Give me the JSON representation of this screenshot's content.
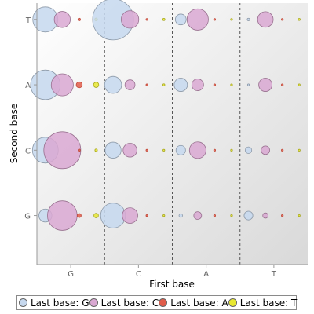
{
  "chart_data": {
    "type": "scatter",
    "title": "",
    "xlabel": "First base",
    "ylabel": "Second base",
    "x_categories": [
      "G",
      "C",
      "A",
      "T"
    ],
    "y_categories": [
      "T",
      "A",
      "C",
      "G"
    ],
    "sub_columns": 4,
    "sub_rows": 2,
    "grid": "dashed vertical separators",
    "legend_position": "bottom",
    "series": [
      {
        "name": "Last base: G",
        "color": "#c6d8ee"
      },
      {
        "name": "Last base: C",
        "color": "#d9a8d2"
      },
      {
        "name": "Last base: A",
        "color": "#e05c4a"
      },
      {
        "name": "Last base: T",
        "color": "#e8e832"
      }
    ],
    "points": [
      {
        "x": "G",
        "y": "T",
        "last": "G",
        "size": 1.0
      },
      {
        "x": "G",
        "y": "T",
        "last": "C",
        "size": 0.64
      },
      {
        "x": "G",
        "y": "T",
        "last": "A",
        "size": 0.1
      },
      {
        "x": "G",
        "y": "T",
        "last": "T",
        "size": 0.11
      },
      {
        "x": "C",
        "y": "T",
        "last": "G",
        "size": 1.63
      },
      {
        "x": "C",
        "y": "T",
        "last": "C",
        "size": 0.7
      },
      {
        "x": "C",
        "y": "T",
        "last": "A",
        "size": 0.04
      },
      {
        "x": "C",
        "y": "T",
        "last": "T",
        "size": 0.09
      },
      {
        "x": "A",
        "y": "T",
        "last": "G",
        "size": 0.43
      },
      {
        "x": "A",
        "y": "T",
        "last": "C",
        "size": 0.85
      },
      {
        "x": "A",
        "y": "T",
        "last": "A",
        "size": 0.04
      },
      {
        "x": "A",
        "y": "T",
        "last": "T",
        "size": 0.07
      },
      {
        "x": "T",
        "y": "T",
        "last": "G",
        "size": 0.1
      },
      {
        "x": "T",
        "y": "T",
        "last": "C",
        "size": 0.62
      },
      {
        "x": "T",
        "y": "T",
        "last": "A",
        "size": 0.03
      },
      {
        "x": "T",
        "y": "T",
        "last": "T",
        "size": 0.08
      },
      {
        "x": "G",
        "y": "A",
        "last": "G",
        "size": 1.18
      },
      {
        "x": "G",
        "y": "A",
        "last": "C",
        "size": 0.88
      },
      {
        "x": "G",
        "y": "A",
        "last": "A",
        "size": 0.24
      },
      {
        "x": "G",
        "y": "A",
        "last": "T",
        "size": 0.21
      },
      {
        "x": "C",
        "y": "A",
        "last": "G",
        "size": 0.68
      },
      {
        "x": "C",
        "y": "A",
        "last": "C",
        "size": 0.4
      },
      {
        "x": "C",
        "y": "A",
        "last": "A",
        "size": 0.07
      },
      {
        "x": "C",
        "y": "A",
        "last": "T",
        "size": 0.08
      },
      {
        "x": "A",
        "y": "A",
        "last": "G",
        "size": 0.53
      },
      {
        "x": "A",
        "y": "A",
        "last": "C",
        "size": 0.47
      },
      {
        "x": "A",
        "y": "A",
        "last": "A",
        "size": 0.05
      },
      {
        "x": "A",
        "y": "A",
        "last": "T",
        "size": 0.05
      },
      {
        "x": "T",
        "y": "A",
        "last": "G",
        "size": 0.03
      },
      {
        "x": "T",
        "y": "A",
        "last": "C",
        "size": 0.53
      },
      {
        "x": "T",
        "y": "A",
        "last": "A",
        "size": 0.03
      },
      {
        "x": "T",
        "y": "A",
        "last": "T",
        "size": 0.03
      },
      {
        "x": "G",
        "y": "C",
        "last": "G",
        "size": 1.03
      },
      {
        "x": "G",
        "y": "C",
        "last": "C",
        "size": 1.47
      },
      {
        "x": "G",
        "y": "C",
        "last": "A",
        "size": 0.09
      },
      {
        "x": "G",
        "y": "C",
        "last": "T",
        "size": 0.1
      },
      {
        "x": "C",
        "y": "C",
        "last": "G",
        "size": 0.64
      },
      {
        "x": "C",
        "y": "C",
        "last": "C",
        "size": 0.55
      },
      {
        "x": "C",
        "y": "C",
        "last": "A",
        "size": 0.06
      },
      {
        "x": "C",
        "y": "C",
        "last": "T",
        "size": 0.06
      },
      {
        "x": "A",
        "y": "C",
        "last": "G",
        "size": 0.38
      },
      {
        "x": "A",
        "y": "C",
        "last": "C",
        "size": 0.66
      },
      {
        "x": "A",
        "y": "C",
        "last": "A",
        "size": 0.04
      },
      {
        "x": "A",
        "y": "C",
        "last": "T",
        "size": 0.05
      },
      {
        "x": "T",
        "y": "C",
        "last": "G",
        "size": 0.26
      },
      {
        "x": "T",
        "y": "C",
        "last": "C",
        "size": 0.34
      },
      {
        "x": "T",
        "y": "C",
        "last": "A",
        "size": 0.03
      },
      {
        "x": "T",
        "y": "C",
        "last": "T",
        "size": 0.03
      },
      {
        "x": "G",
        "y": "G",
        "last": "G",
        "size": 0.52
      },
      {
        "x": "G",
        "y": "G",
        "last": "C",
        "size": 1.18
      },
      {
        "x": "G",
        "y": "G",
        "last": "A",
        "size": 0.16
      },
      {
        "x": "G",
        "y": "G",
        "last": "T",
        "size": 0.18
      },
      {
        "x": "C",
        "y": "G",
        "last": "G",
        "size": 0.99
      },
      {
        "x": "C",
        "y": "G",
        "last": "C",
        "size": 0.62
      },
      {
        "x": "C",
        "y": "G",
        "last": "A",
        "size": 0.06
      },
      {
        "x": "C",
        "y": "G",
        "last": "T",
        "size": 0.06
      },
      {
        "x": "A",
        "y": "G",
        "last": "G",
        "size": 0.14
      },
      {
        "x": "A",
        "y": "G",
        "last": "C",
        "size": 0.31
      },
      {
        "x": "A",
        "y": "G",
        "last": "A",
        "size": 0.03
      },
      {
        "x": "A",
        "y": "G",
        "last": "T",
        "size": 0.03
      },
      {
        "x": "T",
        "y": "G",
        "last": "G",
        "size": 0.35
      },
      {
        "x": "T",
        "y": "G",
        "last": "C",
        "size": 0.21
      },
      {
        "x": "T",
        "y": "G",
        "last": "A",
        "size": 0.05
      },
      {
        "x": "T",
        "y": "G",
        "last": "T",
        "size": 0.03
      }
    ]
  }
}
